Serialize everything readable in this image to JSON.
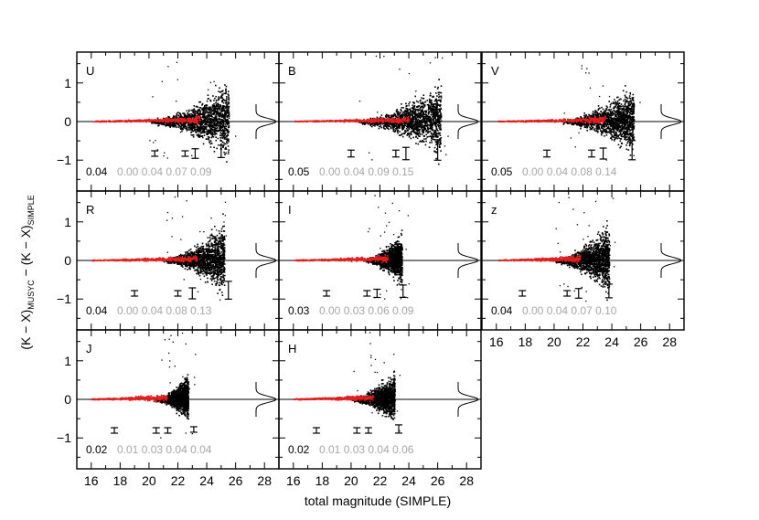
{
  "figure": {
    "xlabel": "total magnitude (SIMPLE)",
    "ylabel_parts": {
      "main": "(K − X)",
      "sub1": "MUSYC",
      "mid": " − (K − X)",
      "sub2": "SIMPLE"
    },
    "colors": {
      "axis": "#000000",
      "points": "#000000",
      "highlight": "#e02020",
      "faint": "#a8a8a8"
    }
  },
  "chart_data": [
    {
      "type": "scatter",
      "band": "U",
      "row": 0,
      "col": 0,
      "xlim": [
        15,
        29
      ],
      "ylim": [
        -1.8,
        1.8
      ],
      "xticks": [
        16,
        18,
        20,
        22,
        24,
        26,
        28
      ],
      "yticks": [
        -1,
        0,
        1
      ],
      "show_xticklabels": false,
      "show_yticklabels": true,
      "cloud": {
        "x_start": 20.0,
        "x_end": 25.5,
        "max_spread": 0.55,
        "red_until": 23.5
      },
      "error_bars": [
        {
          "x": 20.4,
          "half_height": 0.04
        },
        {
          "x": 22.5,
          "half_height": 0.04
        },
        {
          "x": 23.2,
          "half_height": 0.07
        },
        {
          "x": 25.0,
          "half_height": 0.09
        }
      ],
      "scatter_value": "0.04",
      "sigmas": [
        "0.00",
        "0.04",
        "0.07",
        "0.09"
      ]
    },
    {
      "type": "scatter",
      "band": "B",
      "row": 0,
      "col": 1,
      "xlim": [
        15,
        29
      ],
      "ylim": [
        -1.8,
        1.8
      ],
      "xticks": [
        16,
        18,
        20,
        22,
        24,
        26,
        28
      ],
      "yticks": [
        -1,
        0,
        1
      ],
      "show_xticklabels": false,
      "show_yticklabels": false,
      "cloud": {
        "x_start": 20.5,
        "x_end": 26.2,
        "max_spread": 0.55,
        "red_until": 24.0
      },
      "error_bars": [
        {
          "x": 20.0,
          "half_height": 0.05
        },
        {
          "x": 23.1,
          "half_height": 0.05
        },
        {
          "x": 23.8,
          "half_height": 0.09
        },
        {
          "x": 26.0,
          "half_height": 0.15
        }
      ],
      "scatter_value": "0.05",
      "sigmas": [
        "0.00",
        "0.04",
        "0.09",
        "0.15"
      ]
    },
    {
      "type": "scatter",
      "band": "V",
      "row": 0,
      "col": 2,
      "xlim": [
        15,
        29
      ],
      "ylim": [
        -1.8,
        1.8
      ],
      "xticks": [
        16,
        18,
        20,
        22,
        24,
        26,
        28
      ],
      "yticks": [
        -1,
        0,
        1
      ],
      "show_xticklabels": false,
      "show_yticklabels": false,
      "cloud": {
        "x_start": 20.5,
        "x_end": 25.5,
        "max_spread": 0.5,
        "red_until": 23.5
      },
      "error_bars": [
        {
          "x": 19.5,
          "half_height": 0.05
        },
        {
          "x": 22.6,
          "half_height": 0.05
        },
        {
          "x": 23.4,
          "half_height": 0.08
        },
        {
          "x": 25.4,
          "half_height": 0.14
        }
      ],
      "scatter_value": "0.05",
      "sigmas": [
        "0.00",
        "0.04",
        "0.08",
        "0.14"
      ]
    },
    {
      "type": "scatter",
      "band": "R",
      "row": 1,
      "col": 0,
      "xlim": [
        15,
        29
      ],
      "ylim": [
        -1.8,
        1.8
      ],
      "xticks": [
        16,
        18,
        20,
        22,
        24,
        26,
        28
      ],
      "yticks": [
        -1,
        0,
        1
      ],
      "show_xticklabels": false,
      "show_yticklabels": true,
      "cloud": {
        "x_start": 21.0,
        "x_end": 25.2,
        "max_spread": 0.5,
        "red_until": 23.3
      },
      "error_bars": [
        {
          "x": 19.0,
          "half_height": 0.04
        },
        {
          "x": 22.0,
          "half_height": 0.04
        },
        {
          "x": 23.0,
          "half_height": 0.08
        },
        {
          "x": 25.5,
          "half_height": 0.13
        }
      ],
      "scatter_value": "0.04",
      "sigmas": [
        "0.00",
        "0.04",
        "0.08",
        "0.13"
      ]
    },
    {
      "type": "scatter",
      "band": "I",
      "row": 1,
      "col": 1,
      "xlim": [
        15,
        29
      ],
      "ylim": [
        -1.8,
        1.8
      ],
      "xticks": [
        16,
        18,
        20,
        22,
        24,
        26,
        28
      ],
      "yticks": [
        -1,
        0,
        1
      ],
      "show_xticklabels": false,
      "show_yticklabels": false,
      "cloud": {
        "x_start": 21.0,
        "x_end": 23.5,
        "max_spread": 0.35,
        "red_until": 22.5
      },
      "error_bars": [
        {
          "x": 18.3,
          "half_height": 0.03
        },
        {
          "x": 21.1,
          "half_height": 0.03
        },
        {
          "x": 21.8,
          "half_height": 0.06
        },
        {
          "x": 23.6,
          "half_height": 0.09
        }
      ],
      "scatter_value": "0.03",
      "sigmas": [
        "0.00",
        "0.03",
        "0.06",
        "0.09"
      ]
    },
    {
      "type": "scatter",
      "band": "z",
      "row": 1,
      "col": 2,
      "xlim": [
        15,
        29
      ],
      "ylim": [
        -1.8,
        1.8
      ],
      "xticks": [
        16,
        18,
        20,
        22,
        24,
        26,
        28
      ],
      "yticks": [
        -1,
        0,
        1
      ],
      "show_xticklabels": true,
      "show_yticklabels": false,
      "cloud": {
        "x_start": 20.0,
        "x_end": 23.8,
        "max_spread": 0.5,
        "red_until": 21.8
      },
      "error_bars": [
        {
          "x": 17.8,
          "half_height": 0.04
        },
        {
          "x": 20.9,
          "half_height": 0.04
        },
        {
          "x": 21.7,
          "half_height": 0.07
        },
        {
          "x": 23.8,
          "half_height": 0.1
        }
      ],
      "scatter_value": "0.04",
      "sigmas": [
        "0.00",
        "0.04",
        "0.07",
        "0.10"
      ]
    },
    {
      "type": "scatter",
      "band": "J",
      "row": 2,
      "col": 0,
      "xlim": [
        15,
        29
      ],
      "ylim": [
        -1.8,
        1.8
      ],
      "xticks": [
        16,
        18,
        20,
        22,
        24,
        26,
        28
      ],
      "yticks": [
        -1,
        0,
        1
      ],
      "show_xticklabels": true,
      "show_yticklabels": true,
      "cloud": {
        "x_start": 20.5,
        "x_end": 22.7,
        "max_spread": 0.3,
        "red_until": 21.2
      },
      "error_bars": [
        {
          "x": 17.6,
          "half_height": 0.02
        },
        {
          "x": 20.5,
          "half_height": 0.02
        },
        {
          "x": 21.3,
          "half_height": 0.04
        },
        {
          "x": 23.1,
          "half_height": 0.04
        }
      ],
      "scatter_value": "0.02",
      "sigmas": [
        "0.01",
        "0.03",
        "0.04",
        "0.04"
      ]
    },
    {
      "type": "scatter",
      "band": "H",
      "row": 2,
      "col": 1,
      "xlim": [
        15,
        29
      ],
      "ylim": [
        -1.8,
        1.8
      ],
      "xticks": [
        16,
        18,
        20,
        22,
        24,
        26,
        28
      ],
      "yticks": [
        -1,
        0,
        1
      ],
      "show_xticklabels": true,
      "show_yticklabels": false,
      "cloud": {
        "x_start": 20.0,
        "x_end": 23.0,
        "max_spread": 0.35,
        "red_until": 21.5
      },
      "error_bars": [
        {
          "x": 17.6,
          "half_height": 0.02
        },
        {
          "x": 20.4,
          "half_height": 0.02
        },
        {
          "x": 21.2,
          "half_height": 0.04
        },
        {
          "x": 23.3,
          "half_height": 0.06
        }
      ],
      "scatter_value": "0.02",
      "sigmas": [
        "0.01",
        "0.03",
        "0.04",
        "0.06"
      ]
    }
  ]
}
